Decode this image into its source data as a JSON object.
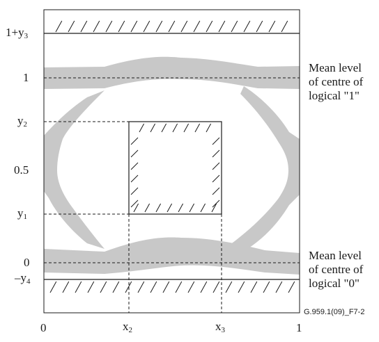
{
  "figure_id": "G.959.1(09)_F7-2",
  "y_axis_labels": [
    {
      "base": "1+y",
      "sub": "3"
    },
    {
      "base": "1",
      "sub": ""
    },
    {
      "base": "y",
      "sub": "2"
    },
    {
      "base": "0.5",
      "sub": ""
    },
    {
      "base": "y",
      "sub": "1"
    },
    {
      "base": "0",
      "sub": ""
    },
    {
      "base": "–y",
      "sub": "4"
    }
  ],
  "x_axis_labels": [
    {
      "base": "0",
      "sub": ""
    },
    {
      "base": "x",
      "sub": "2"
    },
    {
      "base": "x",
      "sub": "3"
    },
    {
      "base": "1",
      "sub": ""
    }
  ],
  "mean_level_1": {
    "line1": "Mean level",
    "line2": "of centre of",
    "line3": "logical \"1\""
  },
  "mean_level_0": {
    "line1": "Mean level",
    "line2": "of centre of",
    "line3": "logical \"0\""
  },
  "colors": {
    "eye_band": "#c8c8c8",
    "line": "#1a1a1a",
    "background": "#ffffff"
  }
}
